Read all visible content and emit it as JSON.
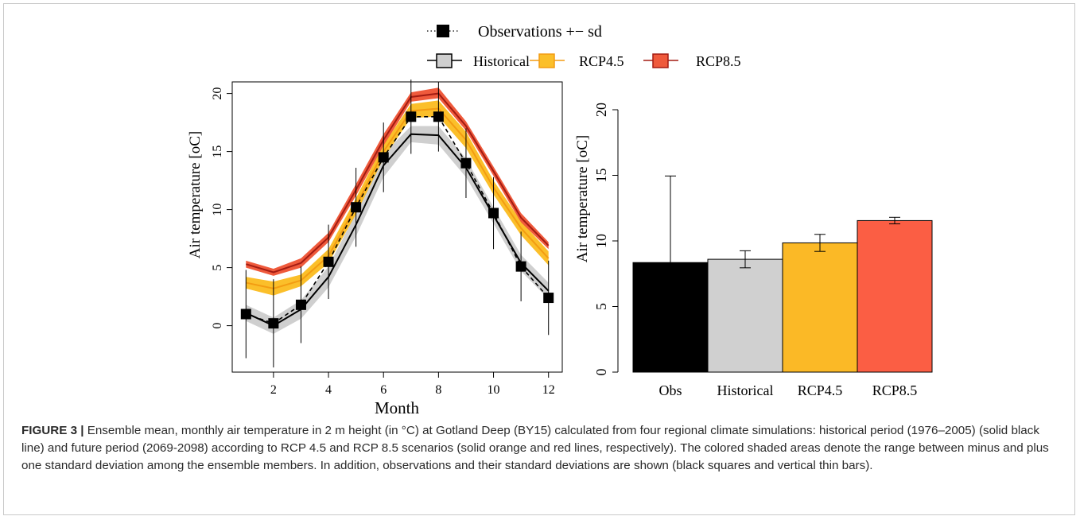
{
  "legend": {
    "observations_label": "Observations +− sd",
    "historical_label": "Historical",
    "rcp45_label": "RCP4.5",
    "rcp85_label": "RCP8.5"
  },
  "colors": {
    "observations": "#000000",
    "historical_line": "#000000",
    "historical_band": "#cfcfcf",
    "rcp45_line": "#f39c12",
    "rcp45_band": "#fbbf2a",
    "rcp85_line": "#a31b12",
    "rcp85_band": "#ef5a3c",
    "bar_obs": "#000000",
    "bar_hist": "#d0d0d0",
    "bar_rcp45": "#fbb926",
    "bar_rcp85": "#fb5e44"
  },
  "chart_data": [
    {
      "type": "line",
      "xlabel": "Month",
      "ylabel": "Air temperature [oC]",
      "xlim": [
        0.5,
        12.5
      ],
      "ylim": [
        -4,
        21
      ],
      "x_ticks": [
        2,
        4,
        6,
        8,
        10,
        12
      ],
      "y_ticks": [
        0,
        5,
        10,
        15,
        20
      ],
      "x": [
        1,
        2,
        3,
        4,
        5,
        6,
        7,
        8,
        9,
        10,
        11,
        12
      ],
      "series": [
        {
          "name": "Historical",
          "mean": [
            1.1,
            0.0,
            1.4,
            4.2,
            8.7,
            13.8,
            16.5,
            16.4,
            13.6,
            9.5,
            5.4,
            3.0
          ],
          "lower": [
            0.4,
            -0.7,
            0.6,
            3.3,
            7.7,
            12.8,
            15.8,
            15.6,
            12.8,
            8.8,
            4.7,
            2.3
          ],
          "upper": [
            1.8,
            0.7,
            2.2,
            5.1,
            9.7,
            14.8,
            17.2,
            17.2,
            14.4,
            10.2,
            6.1,
            3.7
          ]
        },
        {
          "name": "RCP4.5",
          "mean": [
            3.7,
            3.2,
            3.9,
            6.0,
            10.3,
            15.0,
            18.5,
            18.7,
            16.0,
            11.9,
            8.4,
            5.8
          ],
          "lower": [
            3.2,
            2.6,
            3.4,
            5.4,
            9.6,
            14.4,
            17.9,
            18.0,
            15.3,
            11.3,
            7.8,
            5.2
          ],
          "upper": [
            4.2,
            3.8,
            4.4,
            6.6,
            11.0,
            15.6,
            19.1,
            19.4,
            16.7,
            12.5,
            9.0,
            6.4
          ]
        },
        {
          "name": "RCP8.5",
          "mean": [
            5.3,
            4.6,
            5.4,
            7.6,
            11.7,
            16.0,
            19.7,
            20.0,
            17.2,
            13.3,
            9.3,
            6.9
          ],
          "lower": [
            5.0,
            4.3,
            5.0,
            7.2,
            11.2,
            15.5,
            19.3,
            19.6,
            16.8,
            12.9,
            8.9,
            6.6
          ],
          "upper": [
            5.6,
            4.9,
            5.8,
            8.0,
            12.2,
            16.5,
            20.1,
            20.5,
            17.6,
            13.7,
            9.7,
            7.2
          ]
        },
        {
          "name": "Observations +− sd",
          "values": [
            1.0,
            0.2,
            1.8,
            5.5,
            10.2,
            14.5,
            18.0,
            18.0,
            14.0,
            9.7,
            5.1,
            2.4
          ],
          "sd": [
            3.8,
            3.8,
            3.3,
            3.2,
            3.4,
            3.0,
            3.2,
            3.0,
            3.0,
            3.1,
            3.0,
            3.2
          ]
        }
      ]
    },
    {
      "type": "bar",
      "ylabel": "Air temperature [oC]",
      "ylim": [
        0,
        20
      ],
      "y_ticks": [
        0,
        5,
        10,
        15,
        20
      ],
      "categories": [
        "Obs",
        "Historical",
        "RCP4.5",
        "RCP8.5"
      ],
      "values": [
        8.35,
        8.6,
        9.85,
        11.55
      ],
      "errors": [
        6.6,
        0.65,
        0.65,
        0.25
      ]
    }
  ],
  "caption": {
    "label": "FIGURE 3 |",
    "text": " Ensemble mean, monthly air temperature in 2 m height (in °C) at Gotland Deep (BY15) calculated from four regional climate simulations: historical period (1976–2005) (solid black line) and future period (2069-2098) according to RCP 4.5 and RCP 8.5 scenarios (solid orange and red lines, respectively). The colored shaded areas denote the range between minus and plus one standard deviation among the ensemble members. In addition, observations and their standard deviations are shown (black squares and vertical thin bars)."
  }
}
